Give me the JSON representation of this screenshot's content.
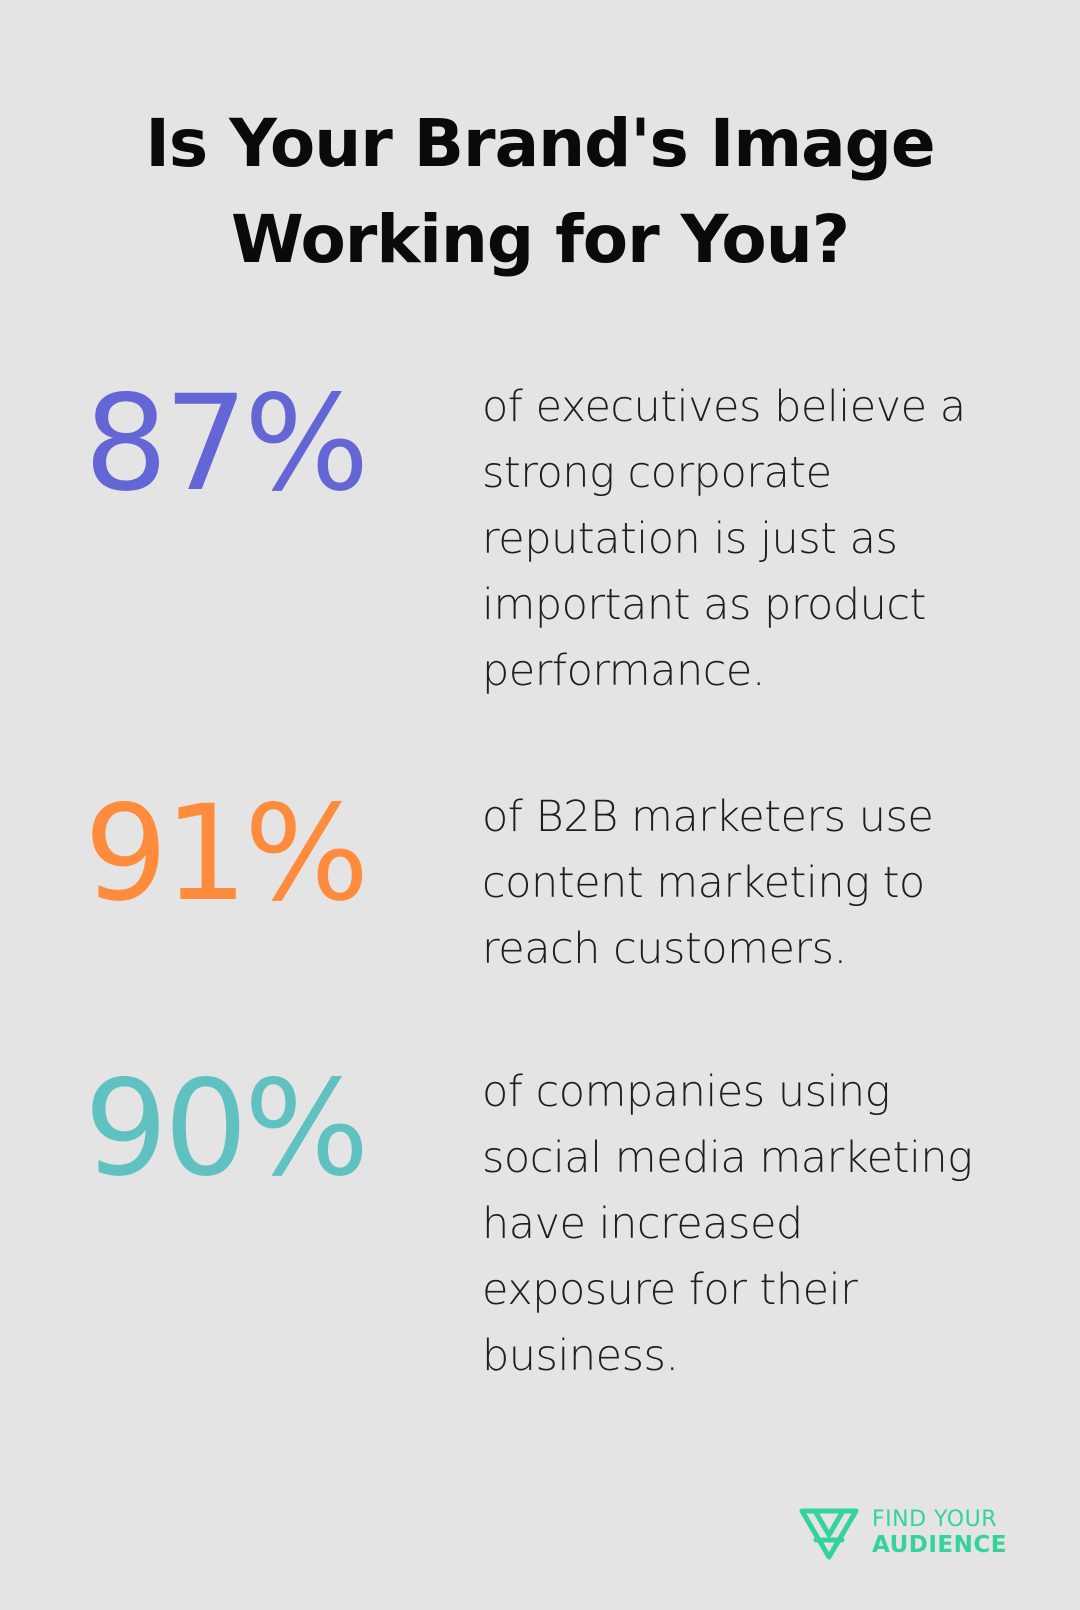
{
  "title": {
    "line1": "Is Your Brand's Image",
    "line2": "Working for You?"
  },
  "stats": [
    {
      "value": "87%",
      "color": "#6466d6",
      "lines": [
        "of executives believe a",
        "strong corporate",
        "reputation is just as",
        "important as product",
        "performance."
      ]
    },
    {
      "value": "91%",
      "color": "#ff8c3c",
      "lines": [
        "of B2B marketers use",
        "content marketing to",
        "reach customers."
      ]
    },
    {
      "value": "90%",
      "color": "#5fc1c0",
      "lines": [
        "of companies using",
        "social media marketing",
        "have increased",
        "exposure for their",
        "business."
      ]
    }
  ],
  "logo": {
    "icon": "find-your-audience-triangle-logo",
    "line1": "FIND YOUR",
    "line2": "AUDIENCE",
    "color": "#34d399"
  },
  "colors": {
    "background": "#e3e4e3",
    "text": "#0a0a0a"
  }
}
